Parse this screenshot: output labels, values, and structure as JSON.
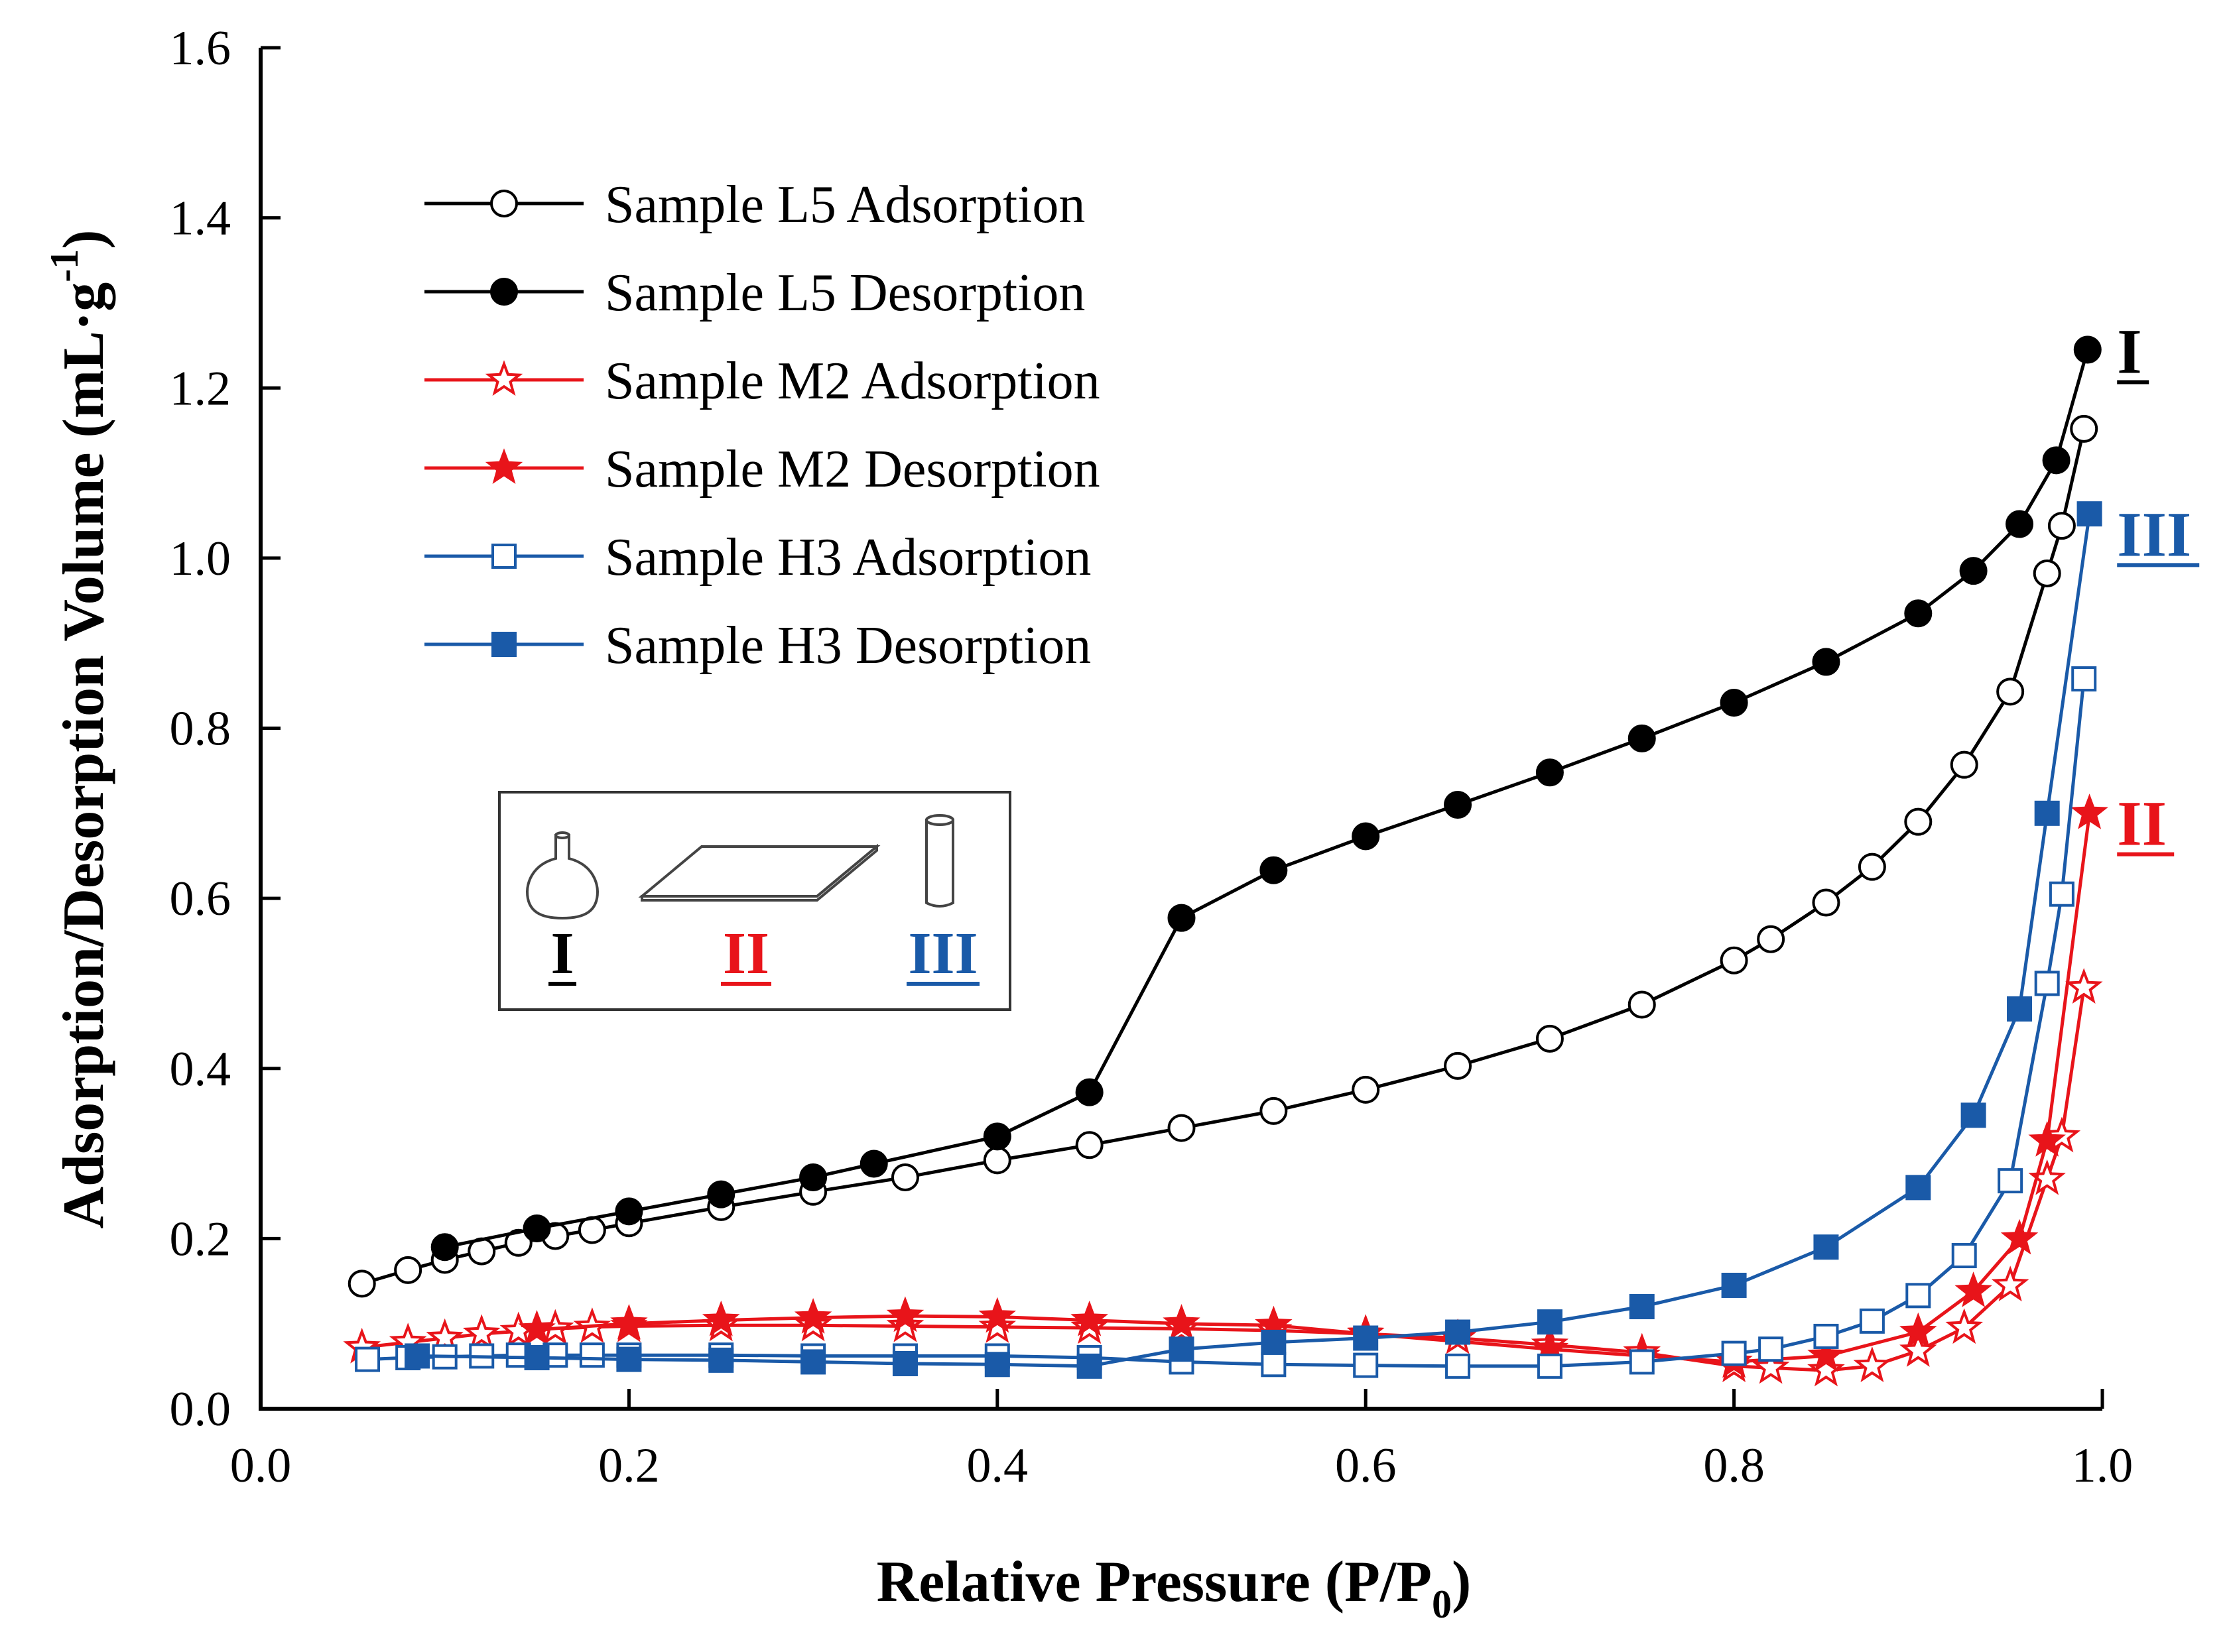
{
  "chart_data": {
    "type": "line",
    "title": "",
    "xlabel": "Relative Pressure (P/P",
    "xlabel_sub": "0",
    "xlabel_end": ")",
    "ylabel": "Adsorption/Desorption Volume (mL·g",
    "ylabel_sup": "-1",
    "ylabel_end": ")",
    "xlim": [
      0.0,
      1.0
    ],
    "ylim": [
      0.0,
      1.6
    ],
    "xticks": [
      "0.0",
      "0.2",
      "0.4",
      "0.6",
      "0.8",
      "1.0"
    ],
    "yticks": [
      "0.0",
      "0.2",
      "0.4",
      "0.6",
      "0.8",
      "1.0",
      "1.2",
      "1.4",
      "1.6"
    ],
    "grid": false,
    "legend_position": "top-left",
    "series": [
      {
        "name": "Sample L5 Adsorption",
        "color": "#000000",
        "marker": "circle-open",
        "x": [
          0.055,
          0.08,
          0.1,
          0.12,
          0.14,
          0.16,
          0.18,
          0.2,
          0.25,
          0.3,
          0.35,
          0.4,
          0.45,
          0.5,
          0.55,
          0.6,
          0.65,
          0.7,
          0.75,
          0.8,
          0.82,
          0.85,
          0.875,
          0.9,
          0.925,
          0.95,
          0.97,
          0.978,
          0.99
        ],
        "y": [
          0.147,
          0.163,
          0.175,
          0.185,
          0.195,
          0.203,
          0.21,
          0.218,
          0.237,
          0.255,
          0.272,
          0.292,
          0.31,
          0.33,
          0.35,
          0.375,
          0.403,
          0.435,
          0.475,
          0.527,
          0.552,
          0.595,
          0.637,
          0.69,
          0.757,
          0.843,
          0.982,
          1.038,
          1.152
        ]
      },
      {
        "name": "Sample L5 Desorption",
        "color": "#000000",
        "marker": "circle-filled",
        "x": [
          0.992,
          0.975,
          0.955,
          0.93,
          0.9,
          0.85,
          0.8,
          0.75,
          0.7,
          0.65,
          0.6,
          0.55,
          0.5,
          0.45,
          0.4,
          0.333,
          0.3,
          0.25,
          0.2,
          0.15,
          0.1
        ],
        "y": [
          1.245,
          1.115,
          1.04,
          0.985,
          0.935,
          0.878,
          0.83,
          0.788,
          0.748,
          0.71,
          0.673,
          0.633,
          0.577,
          0.372,
          0.32,
          0.288,
          0.272,
          0.252,
          0.232,
          0.212,
          0.19
        ]
      },
      {
        "name": "Sample M2 Adsorption",
        "color": "#e8141a",
        "marker": "star-open",
        "x": [
          0.055,
          0.08,
          0.1,
          0.12,
          0.14,
          0.16,
          0.18,
          0.2,
          0.25,
          0.3,
          0.35,
          0.4,
          0.45,
          0.5,
          0.55,
          0.6,
          0.65,
          0.7,
          0.75,
          0.8,
          0.82,
          0.85,
          0.875,
          0.9,
          0.925,
          0.95,
          0.97,
          0.978,
          0.99
        ],
        "y": [
          0.072,
          0.078,
          0.083,
          0.088,
          0.091,
          0.094,
          0.096,
          0.097,
          0.098,
          0.098,
          0.097,
          0.096,
          0.095,
          0.094,
          0.092,
          0.088,
          0.083,
          0.075,
          0.066,
          0.05,
          0.048,
          0.045,
          0.05,
          0.068,
          0.095,
          0.145,
          0.27,
          0.32,
          0.495
        ]
      },
      {
        "name": "Sample M2 Desorption",
        "color": "#e8141a",
        "marker": "star-filled",
        "x": [
          0.993,
          0.97,
          0.955,
          0.93,
          0.9,
          0.85,
          0.8,
          0.75,
          0.7,
          0.6,
          0.55,
          0.5,
          0.45,
          0.4,
          0.35,
          0.3,
          0.25,
          0.2,
          0.15
        ],
        "y": [
          0.7,
          0.315,
          0.2,
          0.138,
          0.09,
          0.062,
          0.055,
          0.062,
          0.07,
          0.088,
          0.098,
          0.1,
          0.104,
          0.108,
          0.109,
          0.107,
          0.104,
          0.1,
          0.093
        ]
      },
      {
        "name": "Sample H3 Adsorption",
        "color": "#1a5aa8",
        "marker": "square-open",
        "x": [
          0.058,
          0.08,
          0.1,
          0.12,
          0.14,
          0.16,
          0.18,
          0.2,
          0.25,
          0.3,
          0.35,
          0.4,
          0.45,
          0.5,
          0.55,
          0.6,
          0.65,
          0.7,
          0.75,
          0.8,
          0.82,
          0.85,
          0.875,
          0.9,
          0.925,
          0.95,
          0.97,
          0.978,
          0.99
        ],
        "y": [
          0.058,
          0.06,
          0.061,
          0.062,
          0.063,
          0.063,
          0.063,
          0.063,
          0.063,
          0.062,
          0.062,
          0.062,
          0.06,
          0.055,
          0.052,
          0.051,
          0.05,
          0.05,
          0.055,
          0.065,
          0.07,
          0.085,
          0.103,
          0.133,
          0.18,
          0.268,
          0.5,
          0.605,
          0.858
        ]
      },
      {
        "name": "Sample H3 Desorption",
        "color": "#1a5aa8",
        "marker": "square-filled",
        "x": [
          0.993,
          0.97,
          0.955,
          0.93,
          0.9,
          0.85,
          0.8,
          0.75,
          0.7,
          0.65,
          0.6,
          0.55,
          0.5,
          0.45,
          0.4,
          0.35,
          0.3,
          0.25,
          0.2,
          0.15,
          0.085
        ],
        "y": [
          1.052,
          0.7,
          0.47,
          0.345,
          0.26,
          0.19,
          0.145,
          0.12,
          0.102,
          0.09,
          0.083,
          0.078,
          0.07,
          0.05,
          0.052,
          0.053,
          0.055,
          0.057,
          0.058,
          0.06,
          0.062
        ]
      }
    ],
    "curve_labels": [
      {
        "text": "I",
        "color": "#000000",
        "x": 1.008,
        "y": 1.245
      },
      {
        "text": "III",
        "color": "#1a5aa8",
        "x": 1.008,
        "y": 1.03
      },
      {
        "text": "II",
        "color": "#e8141a",
        "x": 1.008,
        "y": 0.69
      }
    ],
    "inset": {
      "labels": [
        {
          "text": "I",
          "color": "#000000"
        },
        {
          "text": "II",
          "color": "#e8141a"
        },
        {
          "text": "III",
          "color": "#1a5aa8"
        }
      ]
    }
  }
}
